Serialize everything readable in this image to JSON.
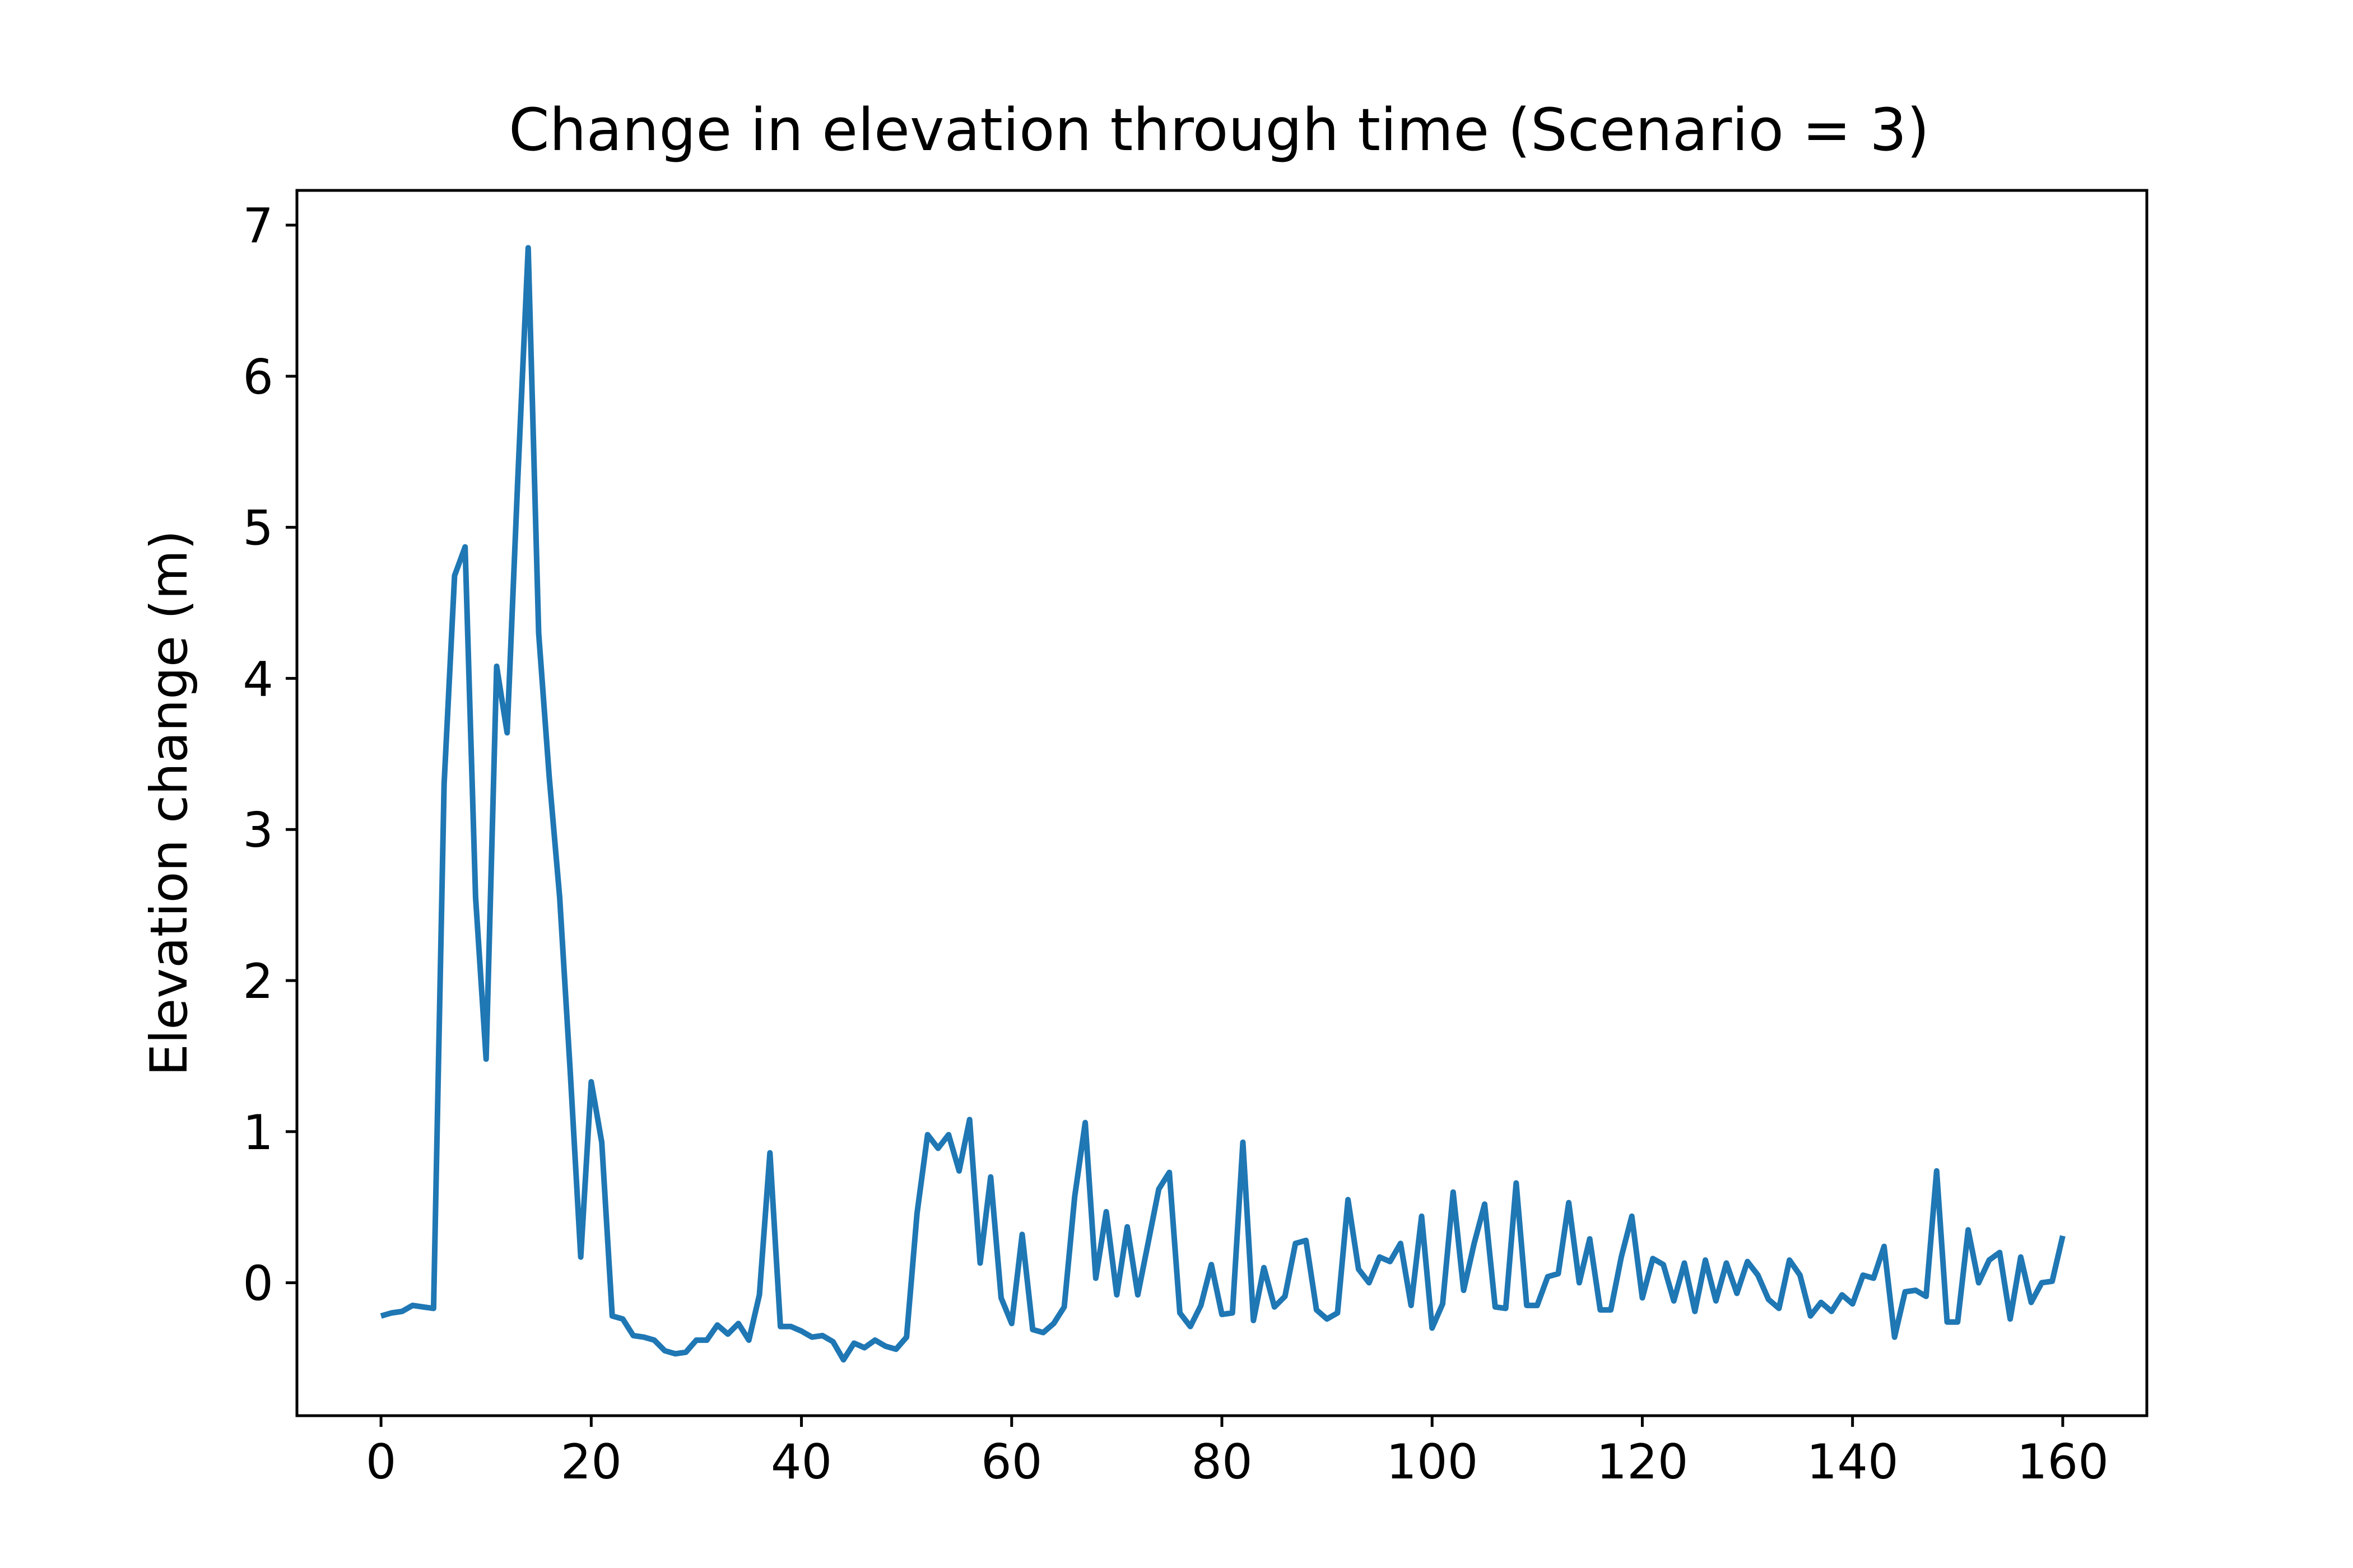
{
  "chart_data": {
    "type": "line",
    "title": "Change in elevation through time (Scenario = 3)",
    "xlabel": "",
    "ylabel": "Elevation change (m)",
    "xlim": [
      -8,
      168
    ],
    "ylim": [
      -0.88,
      7.23
    ],
    "xticks": [
      0,
      20,
      40,
      60,
      80,
      100,
      120,
      140,
      160
    ],
    "yticks": [
      0,
      1,
      2,
      3,
      4,
      5,
      6,
      7
    ],
    "xtick_labels": [
      "0",
      "20",
      "40",
      "60",
      "80",
      "100",
      "120",
      "140",
      "160"
    ],
    "ytick_labels": [
      "0",
      "1",
      "2",
      "3",
      "4",
      "5",
      "6",
      "7"
    ],
    "grid": false,
    "legend": "none",
    "colors": {
      "line": "#1f77b4",
      "axes": "#000000",
      "background": "#ffffff"
    },
    "series": [
      {
        "x": [
          0,
          1,
          2,
          3,
          4,
          5,
          6,
          7,
          8,
          9,
          10,
          11,
          12,
          13,
          14,
          15,
          16,
          17,
          18,
          19,
          20,
          21,
          22,
          23,
          24,
          25,
          26,
          27,
          28,
          29,
          30,
          31,
          32,
          33,
          34,
          35,
          36,
          37,
          38,
          39,
          40,
          41,
          42,
          43,
          44,
          45,
          46,
          47,
          48,
          49,
          50,
          51,
          52,
          53,
          54,
          55,
          56,
          57,
          58,
          59,
          60,
          61,
          62,
          63,
          64,
          65,
          66,
          67,
          68,
          69,
          70,
          71,
          72,
          73,
          74,
          75,
          76,
          77,
          78,
          79,
          80,
          81,
          82,
          83,
          84,
          85,
          86,
          87,
          88,
          89,
          90,
          91,
          92,
          93,
          94,
          95,
          96,
          97,
          98,
          99,
          100,
          101,
          102,
          103,
          104,
          105,
          106,
          107,
          108,
          109,
          110,
          111,
          112,
          113,
          114,
          115,
          116,
          117,
          118,
          119,
          120,
          121,
          122,
          123,
          124,
          125,
          126,
          127,
          128,
          129,
          130,
          131,
          132,
          133,
          134,
          135,
          136,
          137,
          138,
          139,
          140,
          141,
          142,
          143,
          144,
          145,
          146,
          147,
          148,
          149,
          150,
          151,
          152,
          153,
          154,
          155,
          156,
          157,
          158,
          159,
          160
        ],
        "values": [
          -0.22,
          -0.2,
          -0.19,
          -0.15,
          -0.16,
          -0.17,
          3.3,
          4.68,
          4.87,
          2.55,
          1.48,
          4.08,
          3.64,
          5.3,
          6.85,
          4.3,
          3.35,
          2.55,
          1.4,
          0.17,
          1.33,
          0.93,
          -0.22,
          -0.24,
          -0.35,
          -0.36,
          -0.38,
          -0.45,
          -0.47,
          -0.46,
          -0.38,
          -0.38,
          -0.28,
          -0.34,
          -0.27,
          -0.38,
          -0.08,
          0.86,
          -0.29,
          -0.29,
          -0.32,
          -0.36,
          -0.35,
          -0.39,
          -0.51,
          -0.4,
          -0.43,
          -0.38,
          -0.42,
          -0.44,
          -0.36,
          0.46,
          0.98,
          0.89,
          0.98,
          0.74,
          1.08,
          0.13,
          0.7,
          -0.1,
          -0.27,
          0.32,
          -0.31,
          -0.33,
          -0.27,
          -0.16,
          0.57,
          1.06,
          0.03,
          0.47,
          -0.08,
          0.37,
          -0.08,
          0.27,
          0.62,
          0.73,
          -0.2,
          -0.29,
          -0.15,
          0.12,
          -0.21,
          -0.2,
          0.93,
          -0.25,
          0.1,
          -0.16,
          -0.09,
          0.26,
          0.28,
          -0.18,
          -0.24,
          -0.2,
          0.55,
          0.09,
          0.0,
          0.17,
          0.14,
          0.26,
          -0.15,
          0.44,
          -0.3,
          -0.14,
          0.6,
          -0.05,
          0.26,
          0.52,
          -0.16,
          -0.17,
          0.66,
          -0.15,
          -0.15,
          0.04,
          0.06,
          0.53,
          0.0,
          0.29,
          -0.18,
          -0.18,
          0.17,
          0.44,
          -0.1,
          0.16,
          0.12,
          -0.12,
          0.13,
          -0.19,
          0.15,
          -0.12,
          0.13,
          -0.07,
          0.14,
          0.05,
          -0.11,
          -0.17,
          0.15,
          0.05,
          -0.22,
          -0.13,
          -0.19,
          -0.08,
          -0.14,
          0.05,
          0.03,
          0.24,
          -0.36,
          -0.06,
          -0.05,
          -0.09,
          0.74,
          -0.26,
          -0.26,
          0.35,
          0.0,
          0.15,
          0.2,
          -0.24,
          0.17,
          -0.13,
          0.0,
          0.01,
          0.31
        ]
      }
    ]
  }
}
